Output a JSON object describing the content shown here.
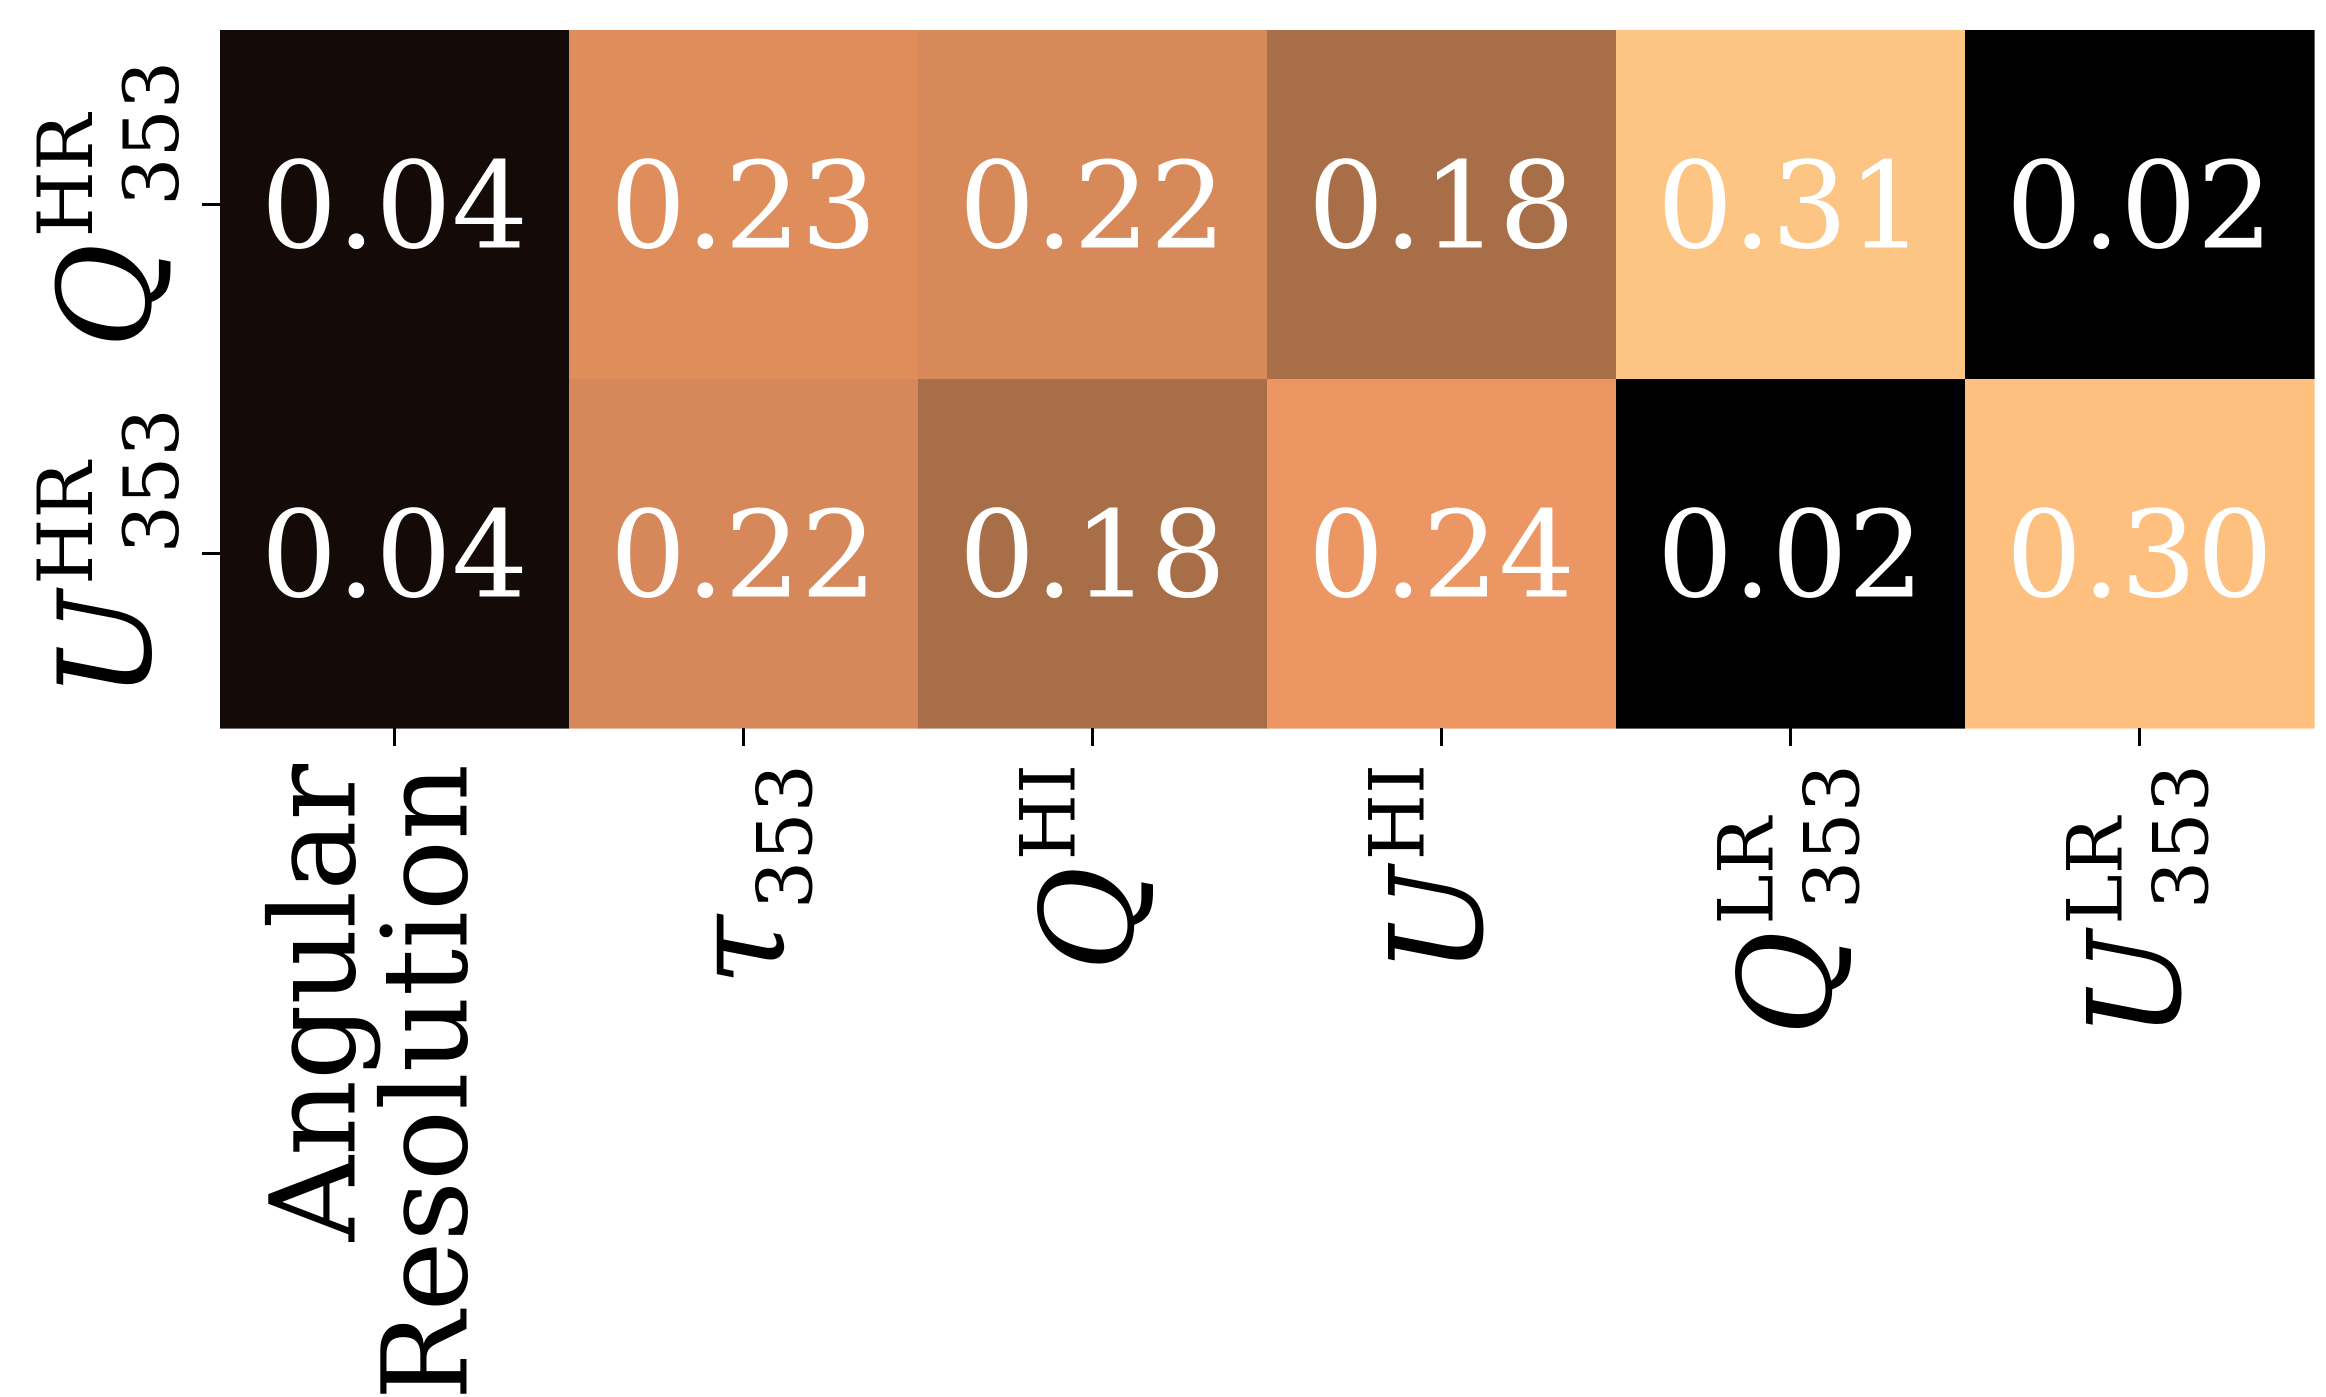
{
  "chart_data": {
    "type": "heatmap",
    "rows": [
      {
        "symbol": "Q",
        "superscript": "HR",
        "subscript": "353"
      },
      {
        "symbol": "U",
        "superscript": "HR",
        "subscript": "353"
      }
    ],
    "columns": [
      {
        "text": "Angular Resolution",
        "line1": "Angular",
        "line2": "Resolution"
      },
      {
        "symbol": "τ",
        "superscript": "",
        "subscript": "353"
      },
      {
        "symbol": "Q",
        "superscript": "HI",
        "subscript": ""
      },
      {
        "symbol": "U",
        "superscript": "HI",
        "subscript": ""
      },
      {
        "symbol": "Q",
        "superscript": "LR",
        "subscript": "353"
      },
      {
        "symbol": "U",
        "superscript": "LR",
        "subscript": "353"
      }
    ],
    "values": [
      [
        "0.04",
        "0.23",
        "0.22",
        "0.18",
        "0.31",
        "0.02"
      ],
      [
        "0.04",
        "0.22",
        "0.18",
        "0.24",
        "0.02",
        "0.30"
      ]
    ],
    "cell_colors": [
      [
        "#140b09",
        "#de8d5b",
        "#d88959",
        "#a86e47",
        "#fdc584",
        "#000000"
      ],
      [
        "#140b09",
        "#d7885a",
        "#a86e47",
        "#ec9663",
        "#000000",
        "#fdc07f"
      ]
    ],
    "value_text_color": "#ffffff",
    "colorbar": false,
    "grid": false
  }
}
